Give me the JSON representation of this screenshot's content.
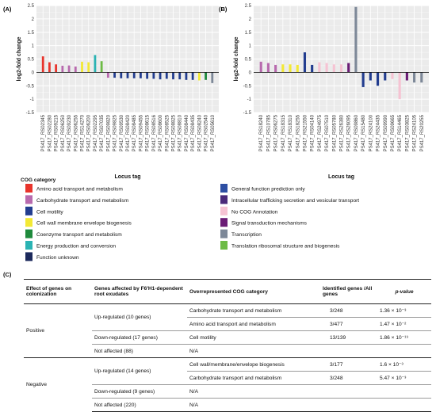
{
  "panels": {
    "a": "(A)",
    "b": "(B)",
    "c": "(C)"
  },
  "chart_data": [
    {
      "type": "bar",
      "panel": "(A)",
      "ylabel": "log2-fold change",
      "xlabel": "Locus tag",
      "ylim": [
        -1.5,
        2.5
      ],
      "yticks": [
        -1.5,
        -1,
        -0.5,
        0,
        0.5,
        1,
        1.5,
        2,
        2.5
      ],
      "grid": true,
      "categories": [
        "PS417_RS02345",
        "PS417_RS02280",
        "PS417_RS09215",
        "PS417_RS06250",
        "PS417_RS09230",
        "PS417_RS06255",
        "PS417_RS14270",
        "PS417_RS06200",
        "PS417_RS02295",
        "PS417_RS07035",
        "PS417_RS09820",
        "PS417_RS09825",
        "PS417_RS09530",
        "PS417_RS08420",
        "PS417_RS08485",
        "PS417_RS09455",
        "PS417_RS08615",
        "PS417_RS08516",
        "PS417_RS08600",
        "PS417_RS08525",
        "PS417_RS08825",
        "PS417_RS08810",
        "PS417_RS08440",
        "PS417_RS08435",
        "PS417_RS08240",
        "PS417_RS02540",
        "PS417_RS05610"
      ],
      "values": [
        0.6,
        0.38,
        0.3,
        0.25,
        0.26,
        0.22,
        0.4,
        0.38,
        0.65,
        0.42,
        -0.2,
        -0.2,
        -0.22,
        -0.22,
        -0.22,
        -0.22,
        -0.24,
        -0.24,
        -0.26,
        -0.24,
        -0.26,
        -0.26,
        -0.28,
        -0.28,
        -0.3,
        -0.28,
        -0.4
      ],
      "colors": [
        "#e8342c",
        "#e8342c",
        "#e8342c",
        "#b86aae",
        "#b86aae",
        "#b86aae",
        "#f3e935",
        "#f3e935",
        "#2ab3b3",
        "#6dbb45",
        "#b86aae",
        "#223d8f",
        "#223d8f",
        "#223d8f",
        "#223d8f",
        "#223d8f",
        "#223d8f",
        "#223d8f",
        "#223d8f",
        "#223d8f",
        "#223d8f",
        "#223d8f",
        "#223d8f",
        "#223d8f",
        "#f3e935",
        "#1f8a3c",
        "#7d8898"
      ]
    },
    {
      "type": "bar",
      "panel": "(B)",
      "ylabel": "log2-fold change",
      "xlabel": "Locus tag",
      "ylim": [
        -1.5,
        2.5
      ],
      "yticks": [
        -1.5,
        -1,
        -0.5,
        0,
        0.5,
        1,
        1.5,
        2,
        2.5
      ],
      "grid": true,
      "categories": [
        "PS417_RS18240",
        "PS417_RS10785",
        "PS417_RS06275",
        "PS417_RS18315",
        "PS417_RS18310",
        "PS417_RS18255",
        "PS417_RS21550",
        "PS417_RS04140",
        "PS417_RS24975",
        "PS417_RS07510",
        "PS417_RS05780",
        "PS417_RS26380",
        "PS417_RS26095",
        "PS417_RS09860",
        "PS417_RS15480",
        "PS417_RS24100",
        "PS417_RS24435",
        "PS417_RS09990",
        "PS417_RS09665",
        "PS417_RS14465",
        "PS417_RS03825",
        "PS417_RS24105",
        "PS417_RS20255"
      ],
      "values": [
        0.4,
        0.35,
        0.28,
        0.3,
        0.3,
        0.28,
        0.75,
        0.28,
        0.38,
        0.35,
        0.3,
        0.3,
        0.35,
        2.45,
        -0.55,
        -0.3,
        -0.5,
        -0.3,
        -0.25,
        -1.0,
        -0.3,
        -0.38,
        -0.38
      ],
      "colors": [
        "#b86aae",
        "#b86aae",
        "#b86aae",
        "#f3e935",
        "#f3e935",
        "#f3e935",
        "#223d8f",
        "#223d8f",
        "#f6c3d3",
        "#f6c3d3",
        "#f6c3d3",
        "#f6c3d3",
        "#6a1c75",
        "#7d8898",
        "#223d8f",
        "#223d8f",
        "#223d8f",
        "#223d8f",
        "#f6c3d3",
        "#f6c3d3",
        "#6a1c75",
        "#7d8898",
        "#7d8898"
      ]
    }
  ],
  "legend": {
    "title": "COG category",
    "items": [
      {
        "label": "Amino acid transport and metabolism",
        "color": "#e8342c"
      },
      {
        "label": "Carbohydrate transport and metabolism",
        "color": "#b86aae"
      },
      {
        "label": "Cell motility",
        "color": "#223d8f"
      },
      {
        "label": "Cell wall membrane envelope biogenesis",
        "color": "#f3e935"
      },
      {
        "label": "Coenzyme transport and metabolism",
        "color": "#1f8a3c"
      },
      {
        "label": "Energy production and conversion",
        "color": "#2ab3b3"
      },
      {
        "label": "Function unknown",
        "color": "#1c2a5c"
      },
      {
        "label": "General function prediction only",
        "color": "#2d4fa3"
      },
      {
        "label": "Intracellular trafficking secretion and vesicular transport",
        "color": "#4a2a7a"
      },
      {
        "label": "No COG Annotation",
        "color": "#f6c3d3"
      },
      {
        "label": "Signal transduction mechanisms",
        "color": "#6a1c75"
      },
      {
        "label": "Transcription",
        "color": "#7d8898"
      },
      {
        "label": "Translation ribosomal structure and biogenesis",
        "color": "#6dbb45"
      }
    ]
  },
  "table": {
    "headers": {
      "c1": "Effect of genes on colonization",
      "c2": "Genes affected by F6'H1-dependent root exudates",
      "c3": "Overrepresented COG category",
      "c4": "Identified genes /All genes",
      "c5": "p-value"
    },
    "rows": {
      "pos_label": "Positive",
      "pos_up": "Up-regulated (10 genes)",
      "pos_up_cog1": "Carbohydrate transport and metabolism",
      "pos_up_id1": "3/248",
      "pos_up_p1": "1.36 × 10⁻³",
      "pos_up_cog2": "Amino acid transport and metabolism",
      "pos_up_id2": "3/477",
      "pos_up_p2": "1.47 × 10⁻²",
      "pos_down": "Down-regulated (17 genes)",
      "pos_down_cog": "Cell motility",
      "pos_down_id": "13/139",
      "pos_down_p": "1.86 × 10⁻¹⁹",
      "pos_na": "Not affected (88)",
      "pos_na_cog": "N/A",
      "neg_label": "Negative",
      "neg_up": "Up-regulated (14 genes)",
      "neg_up_cog1": "Cell wall/membrane/envelope biogenesis",
      "neg_up_id1": "3/177",
      "neg_up_p1": "1.6 × 10⁻³",
      "neg_up_cog2": "Carbohydrate transport and metabolism",
      "neg_up_id2": "3/248",
      "neg_up_p2": "5.47 × 10⁻³",
      "neg_down": "Down-regulated (9 genes)",
      "neg_down_cog": "N/A",
      "neg_na": "Not affected (220)",
      "neg_na_cog": "N/A"
    }
  }
}
